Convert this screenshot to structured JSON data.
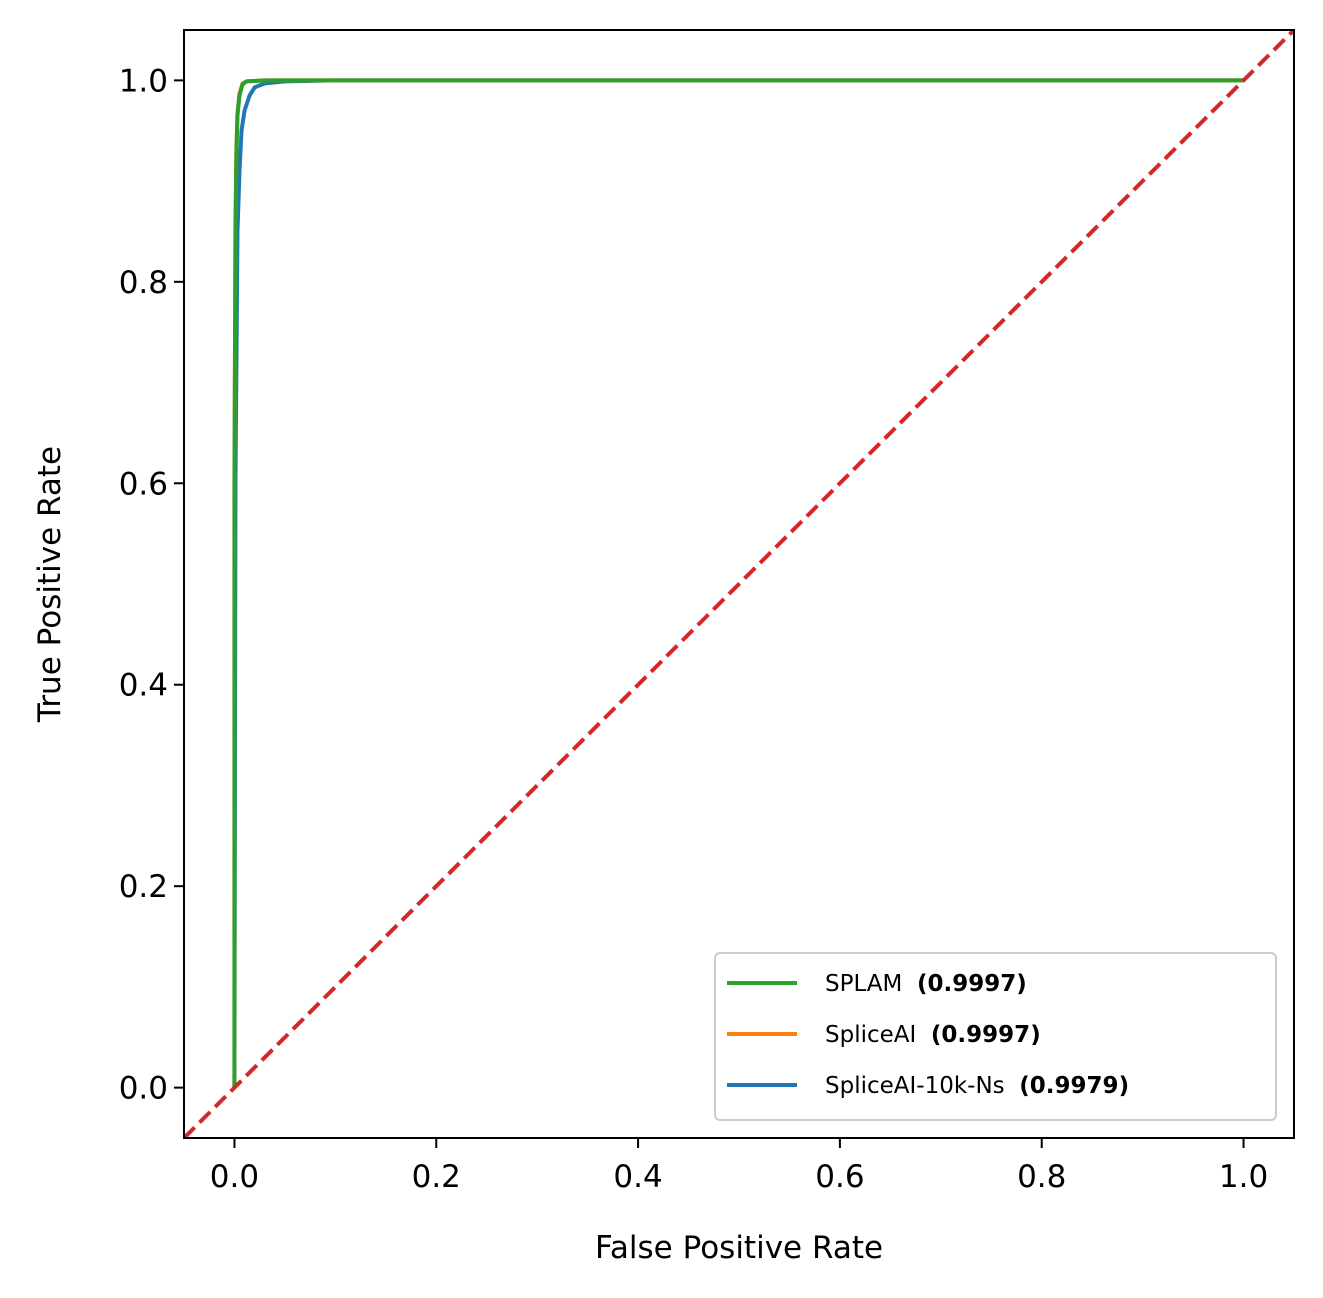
{
  "chart_data": {
    "type": "line",
    "xlabel": "False Positive Rate",
    "ylabel": "True Positive Rate",
    "xlim": [
      -0.05,
      1.05
    ],
    "ylim": [
      -0.05,
      1.05
    ],
    "xticks": [
      0.0,
      0.2,
      0.4,
      0.6,
      0.8,
      1.0
    ],
    "xtick_labels": [
      "0.0",
      "0.2",
      "0.4",
      "0.6",
      "0.8",
      "1.0"
    ],
    "yticks": [
      0.0,
      0.2,
      0.4,
      0.6,
      0.8,
      1.0
    ],
    "ytick_labels": [
      "0.0",
      "0.2",
      "0.4",
      "0.6",
      "0.8",
      "1.0"
    ],
    "grid": false,
    "legend_position": "lower-right",
    "series": [
      {
        "name": "SPLAM",
        "auc_label": "(0.9997)",
        "color": "#2ca02c",
        "x": [
          0.0,
          0.0,
          0.001,
          0.002,
          0.003,
          0.005,
          0.008,
          0.012,
          0.03,
          0.1,
          0.5,
          1.0
        ],
        "y": [
          0.0,
          0.6,
          0.85,
          0.93,
          0.965,
          0.985,
          0.996,
          0.999,
          1.0,
          1.0,
          1.0,
          1.0
        ]
      },
      {
        "name": "SpliceAI",
        "auc_label": "(0.9997)",
        "color": "#ff7f0e",
        "x": [
          0.0,
          0.0,
          0.001,
          0.002,
          0.003,
          0.005,
          0.008,
          0.012,
          0.03,
          0.1,
          0.5,
          1.0
        ],
        "y": [
          0.0,
          0.6,
          0.86,
          0.935,
          0.968,
          0.987,
          0.997,
          0.999,
          1.0,
          1.0,
          1.0,
          1.0
        ]
      },
      {
        "name": "SpliceAI-10k-Ns",
        "auc_label": "(0.9979)",
        "color": "#1f77b4",
        "x": [
          0.0,
          0.001,
          0.003,
          0.005,
          0.007,
          0.01,
          0.015,
          0.02,
          0.03,
          0.05,
          0.1,
          0.2,
          1.0
        ],
        "y": [
          0.0,
          0.6,
          0.85,
          0.91,
          0.95,
          0.97,
          0.985,
          0.993,
          0.997,
          0.999,
          1.0,
          1.0,
          1.0
        ]
      }
    ],
    "reference_line": {
      "color": "#d62728",
      "style": "dashed",
      "x": [
        -0.05,
        1.05
      ],
      "y": [
        -0.05,
        1.05
      ]
    }
  }
}
